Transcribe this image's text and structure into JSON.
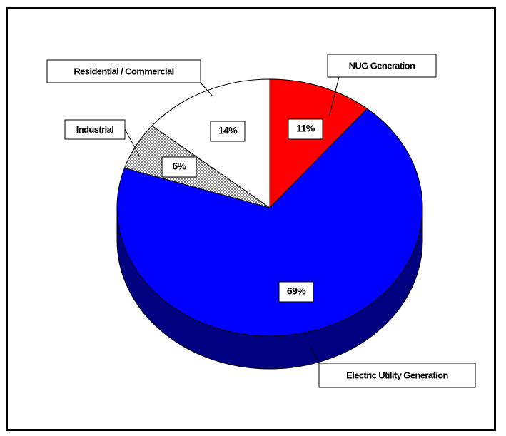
{
  "chart_data": {
    "type": "pie",
    "style": "3d",
    "slices": [
      {
        "label": "NUG Generation",
        "value": 11,
        "value_label": "11%",
        "color": "#ff0000"
      },
      {
        "label": "Electric Utility Generation",
        "value": 69,
        "value_label": "69%",
        "color": "#0000ff"
      },
      {
        "label": "Industrial",
        "value": 6,
        "value_label": "6%",
        "color": "#bfbfbf",
        "pattern": "dotted"
      },
      {
        "label": "Residential / Commercial",
        "value": 14,
        "value_label": "14%",
        "color": "#ffffff"
      }
    ],
    "side_color": "#000080",
    "legend": "callout-labels"
  }
}
